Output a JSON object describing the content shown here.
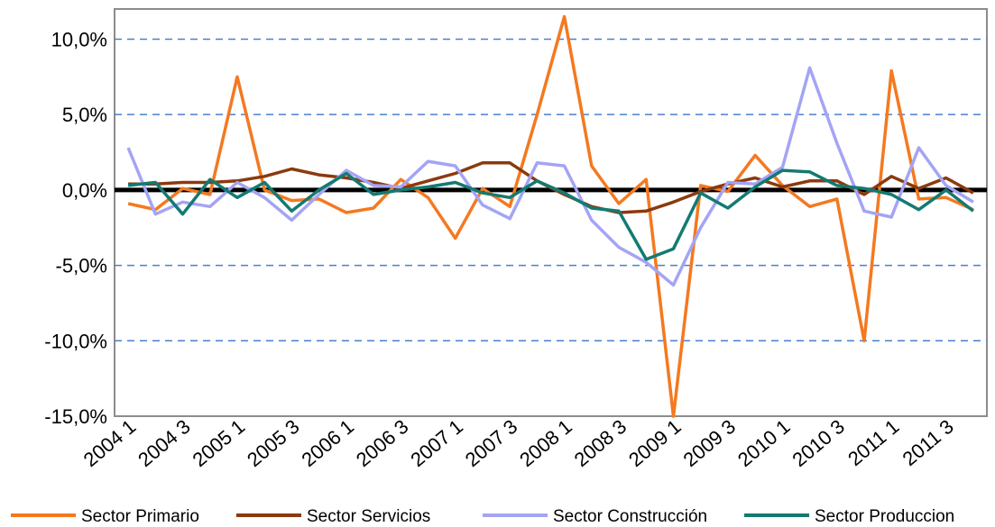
{
  "chart_data": {
    "type": "line",
    "categories": [
      "2004 1",
      null,
      "2004 3",
      null,
      "2005 1",
      null,
      "2005 3",
      null,
      "2006 1",
      null,
      "2006 3",
      null,
      "2007 1",
      null,
      "2007 3",
      null,
      "2008 1",
      null,
      "2008 3",
      null,
      "2009 1",
      null,
      "2009 3",
      null,
      "2010 1",
      null,
      "2010 3",
      null,
      "2011 1",
      null,
      "2011 3",
      null
    ],
    "series": [
      {
        "name": "Sector Primario",
        "color": "#f47920",
        "values": [
          -0.9,
          -1.3,
          0.1,
          -0.3,
          7.5,
          0.0,
          -0.7,
          -0.6,
          -1.5,
          -1.2,
          0.7,
          -0.5,
          -3.2,
          0.1,
          -1.1,
          5.0,
          11.5,
          1.6,
          -0.9,
          0.7,
          -15.0,
          0.3,
          -0.1,
          2.3,
          0.3,
          -1.1,
          -0.6,
          -10.0,
          7.9,
          -0.6,
          -0.5,
          -1.3
        ]
      },
      {
        "name": "Sector Servicios",
        "color": "#8b3a0e",
        "values": [
          0.4,
          0.4,
          0.5,
          0.5,
          0.6,
          0.9,
          1.4,
          1.0,
          0.8,
          0.5,
          0.1,
          0.6,
          1.1,
          1.8,
          1.8,
          0.6,
          -0.3,
          -1.1,
          -1.5,
          -1.4,
          -0.8,
          -0.1,
          0.4,
          0.8,
          0.2,
          0.6,
          0.6,
          -0.3,
          0.9,
          0.1,
          0.8,
          -0.2
        ]
      },
      {
        "name": "Sector Construcción",
        "color": "#a4a4f5",
        "values": [
          2.8,
          -1.6,
          -0.8,
          -1.1,
          0.5,
          -0.5,
          -2.0,
          -0.3,
          1.3,
          0.3,
          0.2,
          1.9,
          1.6,
          -1.0,
          -1.9,
          1.8,
          1.6,
          -2.0,
          -3.8,
          -4.8,
          -6.3,
          -2.5,
          0.5,
          0.4,
          1.5,
          8.1,
          3.1,
          -1.4,
          -1.8,
          2.8,
          0.3,
          -0.8
        ]
      },
      {
        "name": "Sector Produccion",
        "color": "#137a72",
        "values": [
          0.3,
          0.5,
          -1.6,
          0.7,
          -0.5,
          0.5,
          -1.4,
          0.0,
          1.1,
          -0.3,
          0.0,
          0.2,
          0.5,
          -0.2,
          -0.5,
          0.6,
          -0.2,
          -1.2,
          -1.4,
          -4.6,
          -3.9,
          -0.2,
          -1.2,
          0.2,
          1.3,
          1.2,
          0.3,
          0.1,
          -0.3,
          -1.3,
          0.0,
          -1.4
        ]
      }
    ],
    "ylim": [
      -15,
      12
    ],
    "yticks": [
      {
        "value": -15,
        "label": "-15,0%"
      },
      {
        "value": -10,
        "label": "-10,0%"
      },
      {
        "value": -5,
        "label": "-5,0%"
      },
      {
        "value": 0,
        "label": "0,0%"
      },
      {
        "value": 5,
        "label": "5,0%"
      },
      {
        "value": 10,
        "label": "10,0%"
      }
    ],
    "grid": true
  }
}
